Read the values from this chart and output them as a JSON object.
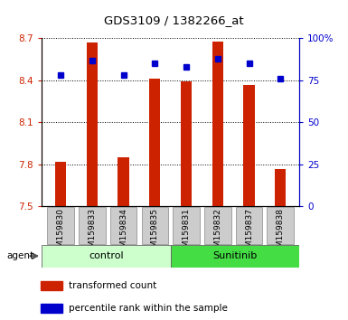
{
  "title": "GDS3109 / 1382266_at",
  "samples": [
    "GSM159830",
    "GSM159833",
    "GSM159834",
    "GSM159835",
    "GSM159831",
    "GSM159832",
    "GSM159837",
    "GSM159838"
  ],
  "red_values": [
    7.82,
    8.67,
    7.85,
    8.41,
    8.39,
    8.68,
    8.37,
    7.77
  ],
  "blue_values": [
    78,
    87,
    78,
    85,
    83,
    88,
    85,
    76
  ],
  "ylim_left": [
    7.5,
    8.7
  ],
  "ylim_right": [
    0,
    100
  ],
  "yticks_left": [
    7.5,
    7.8,
    8.1,
    8.4,
    8.7
  ],
  "yticks_right": [
    0,
    25,
    50,
    75,
    100
  ],
  "ytick_labels_left": [
    "7.5",
    "7.8",
    "8.1",
    "8.4",
    "8.7"
  ],
  "ytick_labels_right": [
    "0",
    "25",
    "50",
    "75",
    "100%"
  ],
  "bar_color": "#cc2200",
  "dot_color": "#0000cc",
  "bar_width": 0.35,
  "control_color": "#ccffcc",
  "sunitinib_color": "#44dd44",
  "agent_label": "agent",
  "legend_items": [
    {
      "color": "#cc2200",
      "label": "transformed count"
    },
    {
      "color": "#0000cc",
      "label": "percentile rank within the sample"
    }
  ],
  "xtick_bg": "#cccccc",
  "plot_bg": "#ffffff"
}
